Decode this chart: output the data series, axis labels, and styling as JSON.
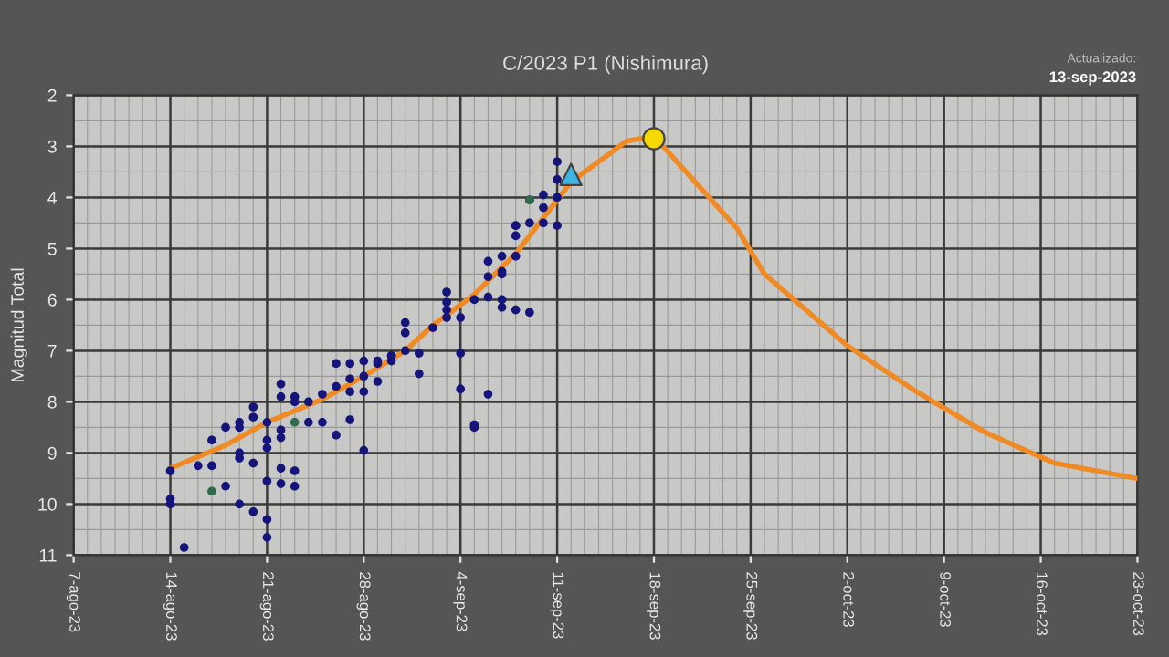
{
  "chart_data": {
    "type": "scatter",
    "title": "C/2023 P1 (Nishimura)",
    "ylabel": "Magnitud Total",
    "annotations": [
      "Actualizado:",
      "13-sep-2023"
    ],
    "xlim": [
      "2023-08-07",
      "2023-10-23"
    ],
    "xticks": [
      {
        "value": "2023-08-07",
        "label": "7-ago-23"
      },
      {
        "value": "2023-08-14",
        "label": "14-ago-23"
      },
      {
        "value": "2023-08-21",
        "label": "21-ago-23"
      },
      {
        "value": "2023-08-28",
        "label": "28-ago-23"
      },
      {
        "value": "2023-09-04",
        "label": "4-sep-23"
      },
      {
        "value": "2023-09-11",
        "label": "11-sep-23"
      },
      {
        "value": "2023-09-18",
        "label": "18-sep-23"
      },
      {
        "value": "2023-09-25",
        "label": "25-sep-23"
      },
      {
        "value": "2023-10-02",
        "label": "2-oct-23"
      },
      {
        "value": "2023-10-09",
        "label": "9-oct-23"
      },
      {
        "value": "2023-10-16",
        "label": "16-oct-23"
      },
      {
        "value": "2023-10-23",
        "label": "23-oct-23"
      }
    ],
    "ylim": [
      11,
      2
    ],
    "yticks": [
      2,
      3,
      4,
      5,
      6,
      7,
      8,
      9,
      10,
      11
    ],
    "grid": true,
    "series": [
      {
        "type": "line",
        "color": "#f08a24",
        "marker": "none",
        "line_style": "solid",
        "x": [
          "2023-08-14",
          "2023-08-18",
          "2023-08-21",
          "2023-08-25",
          "2023-08-28",
          "2023-08-31",
          "2023-09-02",
          "2023-09-05",
          "2023-09-08",
          "2023-09-10",
          "2023-09-12",
          "2023-09-14",
          "2023-09-16",
          "2023-09-18",
          "2023-09-19",
          "2023-09-21",
          "2023-09-24",
          "2023-09-26",
          "2023-09-29",
          "2023-10-02",
          "2023-10-07",
          "2023-10-12",
          "2023-10-17",
          "2023-10-23"
        ],
        "values": [
          9.3,
          8.85,
          8.4,
          7.95,
          7.5,
          7.0,
          6.5,
          5.9,
          5.1,
          4.4,
          3.7,
          3.3,
          2.9,
          2.8,
          3.1,
          3.7,
          4.6,
          5.5,
          6.2,
          6.9,
          7.8,
          8.6,
          9.2,
          9.5
        ]
      },
      {
        "color": "#14147a",
        "marker": "circle",
        "x": [
          "2023-08-14",
          "2023-08-14",
          "2023-08-14",
          "2023-08-15",
          "2023-08-16",
          "2023-08-17",
          "2023-08-17",
          "2023-08-18",
          "2023-08-18",
          "2023-08-19",
          "2023-08-19",
          "2023-08-19",
          "2023-08-19",
          "2023-08-19",
          "2023-08-20",
          "2023-08-20",
          "2023-08-20",
          "2023-08-20",
          "2023-08-21",
          "2023-08-21",
          "2023-08-21",
          "2023-08-21",
          "2023-08-21",
          "2023-08-21",
          "2023-08-22",
          "2023-08-22",
          "2023-08-22",
          "2023-08-22",
          "2023-08-22",
          "2023-08-22",
          "2023-08-23",
          "2023-08-23",
          "2023-08-23",
          "2023-08-23",
          "2023-08-24",
          "2023-08-24",
          "2023-08-25",
          "2023-08-25",
          "2023-08-26",
          "2023-08-26",
          "2023-08-26",
          "2023-08-27",
          "2023-08-27",
          "2023-08-27",
          "2023-08-27",
          "2023-08-28",
          "2023-08-28",
          "2023-08-28",
          "2023-08-28",
          "2023-08-29",
          "2023-08-29",
          "2023-08-29",
          "2023-08-30",
          "2023-08-30",
          "2023-08-30",
          "2023-08-31",
          "2023-08-31",
          "2023-08-31",
          "2023-09-01",
          "2023-09-01",
          "2023-09-02",
          "2023-09-03",
          "2023-09-03",
          "2023-09-03",
          "2023-09-03",
          "2023-09-04",
          "2023-09-04",
          "2023-09-04",
          "2023-09-05",
          "2023-09-05",
          "2023-09-05",
          "2023-09-06",
          "2023-09-06",
          "2023-09-06",
          "2023-09-06",
          "2023-09-07",
          "2023-09-07",
          "2023-09-07",
          "2023-09-07",
          "2023-09-07",
          "2023-09-08",
          "2023-09-08",
          "2023-09-08",
          "2023-09-08",
          "2023-09-08",
          "2023-09-09",
          "2023-09-09",
          "2023-09-09",
          "2023-09-10",
          "2023-09-10",
          "2023-09-10",
          "2023-09-11",
          "2023-09-11",
          "2023-09-11",
          "2023-09-11"
        ],
        "values": [
          9.35,
          9.9,
          10.0,
          10.85,
          9.25,
          8.75,
          9.25,
          9.65,
          8.5,
          8.4,
          8.5,
          9.0,
          9.1,
          10.0,
          8.1,
          8.3,
          9.2,
          10.15,
          8.4,
          8.75,
          8.9,
          9.55,
          10.3,
          10.65,
          8.55,
          8.7,
          7.65,
          7.9,
          9.3,
          9.6,
          9.35,
          9.65,
          7.9,
          8.0,
          8.0,
          8.4,
          8.4,
          7.85,
          8.65,
          7.25,
          7.7,
          8.35,
          7.25,
          7.8,
          7.55,
          7.2,
          8.95,
          7.8,
          7.5,
          7.25,
          7.6,
          7.2,
          7.2,
          7.1,
          7.1,
          6.45,
          6.65,
          7.0,
          7.05,
          7.45,
          6.55,
          6.35,
          6.05,
          5.85,
          6.2,
          6.35,
          7.05,
          7.75,
          8.5,
          6.0,
          8.45,
          5.25,
          5.55,
          5.95,
          7.85,
          6.15,
          5.15,
          5.45,
          5.5,
          6.0,
          4.55,
          4.75,
          4.55,
          5.15,
          6.2,
          4.05,
          4.5,
          6.25,
          3.95,
          4.5,
          4.2,
          3.3,
          3.65,
          4.0,
          4.55
        ]
      },
      {
        "color": "#2e6b4a",
        "marker": "circle",
        "x": [
          "2023-08-17",
          "2023-08-23",
          "2023-09-09"
        ],
        "values": [
          9.75,
          8.4,
          4.05
        ]
      },
      {
        "color": "#3cb4e6",
        "marker": "triangle",
        "x": [
          "2023-09-12"
        ],
        "values": [
          3.55
        ]
      },
      {
        "color": "#f5d800",
        "marker": "circle",
        "x": [
          "2023-09-18"
        ],
        "values": [
          2.85
        ]
      }
    ]
  }
}
